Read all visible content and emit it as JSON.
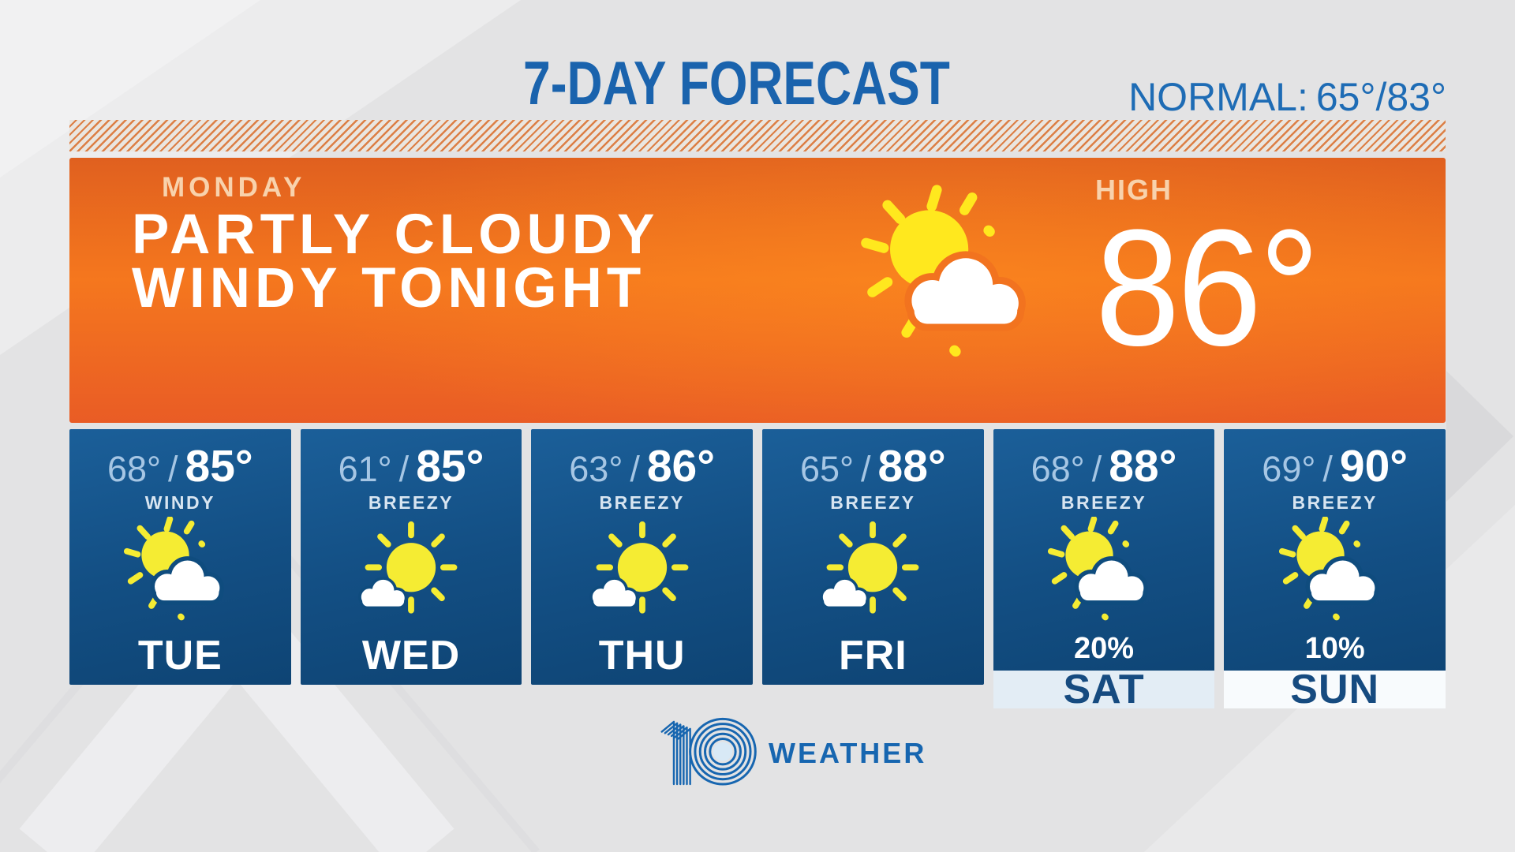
{
  "header": {
    "title": "7-DAY FORECAST",
    "normal_label": "NORMAL:",
    "normal_value": "65°/83°"
  },
  "today": {
    "day_label": "MONDAY",
    "condition_line1": "PARTLY CLOUDY",
    "condition_line2": "WINDY TONIGHT",
    "high_label": "HIGH",
    "high_value": "86°",
    "icon": "sun-behind-cloud"
  },
  "temp_separator": "/",
  "days": [
    {
      "name": "TUE",
      "low": "68°",
      "high": "85°",
      "condition": "WINDY",
      "icon": "partly-cloudy"
    },
    {
      "name": "WED",
      "low": "61°",
      "high": "85°",
      "condition": "BREEZY",
      "icon": "mostly-sunny"
    },
    {
      "name": "THU",
      "low": "63°",
      "high": "86°",
      "condition": "BREEZY",
      "icon": "mostly-sunny"
    },
    {
      "name": "FRI",
      "low": "65°",
      "high": "88°",
      "condition": "BREEZY",
      "icon": "mostly-sunny"
    },
    {
      "name": "SAT",
      "low": "68°",
      "high": "88°",
      "condition": "BREEZY",
      "icon": "partly-cloudy",
      "precip": "20%",
      "label_bg": "#E3EDF5"
    },
    {
      "name": "SUN",
      "low": "69°",
      "high": "90°",
      "condition": "BREEZY",
      "icon": "partly-cloudy",
      "precip": "10%",
      "label_bg": "#F8FBFD"
    }
  ],
  "branding": {
    "station_number": "10",
    "label": "WEATHER"
  },
  "colors": {
    "page_bg": "#E3E3E4",
    "title_blue": "#1A63AD",
    "normal_blue": "#1E6CB5",
    "hatch_bg": "#EAE6E0",
    "hatch_stripe": "#DC7F45",
    "panel_top": "#E0601F",
    "panel_mid": "#F5771E",
    "panel_bottom": "#E95C25",
    "panel_soft_text": "#F8D2AC",
    "card_top": "#1B5F99",
    "card_mid": "#134F84",
    "card_bottom": "#0E4474",
    "low_temp": "#A6C6E4",
    "condition_text": "#D8E5F1",
    "day_label_white": "#FFFFFF",
    "label_text_blue": "#164B80",
    "bottom_strip": "#0C3E6D",
    "sun_yellow": "#F5EC33",
    "panel_sun": "#FFE81E",
    "cloud_white": "#FFFFFF",
    "icon_outline_card": "#0F4C7E",
    "icon_outline_panel": "#F2731F",
    "logo_blue": "#1766B0"
  }
}
